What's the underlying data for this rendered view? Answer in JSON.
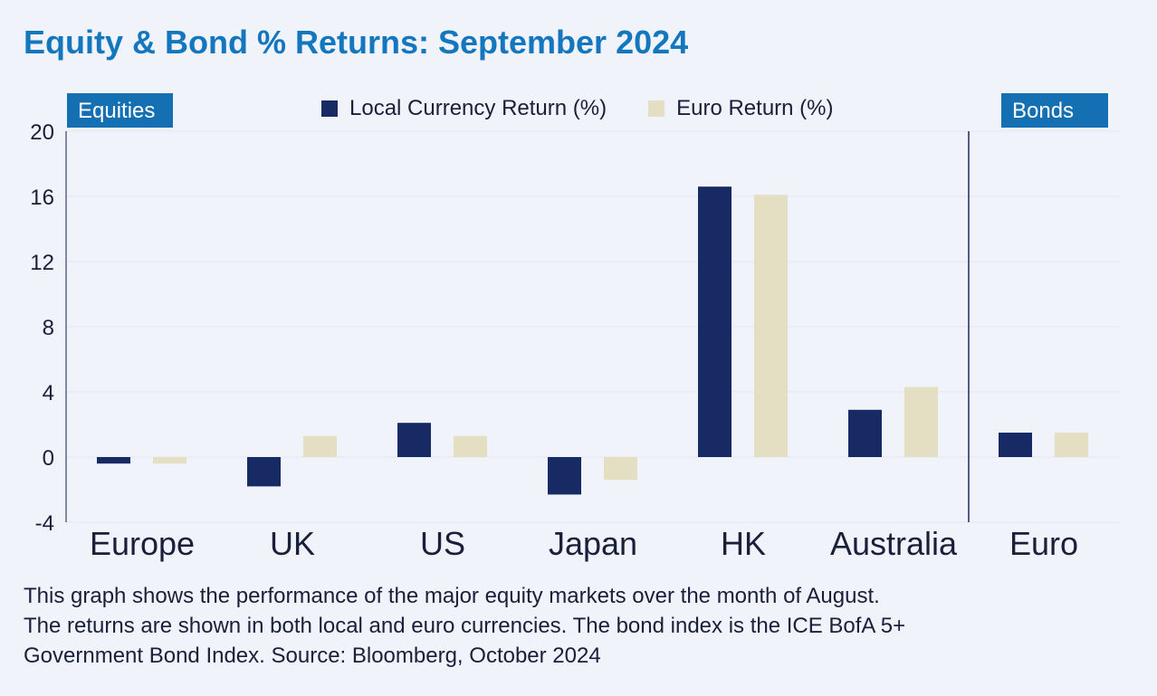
{
  "title": "Equity & Bond % Returns: September 2024",
  "section_labels": {
    "equities": "Equities",
    "bonds": "Bonds"
  },
  "colors": {
    "local": "#172a63",
    "euro": "#e4dfc3",
    "title": "#1477be",
    "tag_bg": "#1570b3",
    "background": "#f0f3fa",
    "grid": "#e3e7f0"
  },
  "caption": [
    "This graph shows the performance of the major equity markets over the month of August.",
    "The returns are shown in both local and euro currencies. The bond index is the ICE BofA 5+",
    "Government Bond Index. Source: Bloomberg, October 2024"
  ],
  "chart_data": {
    "type": "bar",
    "title": "Equity & Bond % Returns: September 2024",
    "xlabel": "",
    "ylabel": "",
    "categories": [
      "Europe",
      "UK",
      "US",
      "Japan",
      "HK",
      "Australia",
      "Euro"
    ],
    "series": [
      {
        "name": "Local Currency Return (%)",
        "values": [
          -0.4,
          -1.8,
          2.1,
          -2.3,
          16.6,
          2.9,
          1.5
        ]
      },
      {
        "name": "Euro Return (%)",
        "values": [
          -0.4,
          1.3,
          1.3,
          -1.4,
          16.1,
          4.3,
          1.5
        ]
      }
    ],
    "ylim": [
      -4,
      20
    ],
    "yticks": [
      20,
      16,
      12,
      8,
      4,
      0,
      -4
    ],
    "grid": true,
    "legend_position": "top-center",
    "divider_after_category": "Australia"
  }
}
